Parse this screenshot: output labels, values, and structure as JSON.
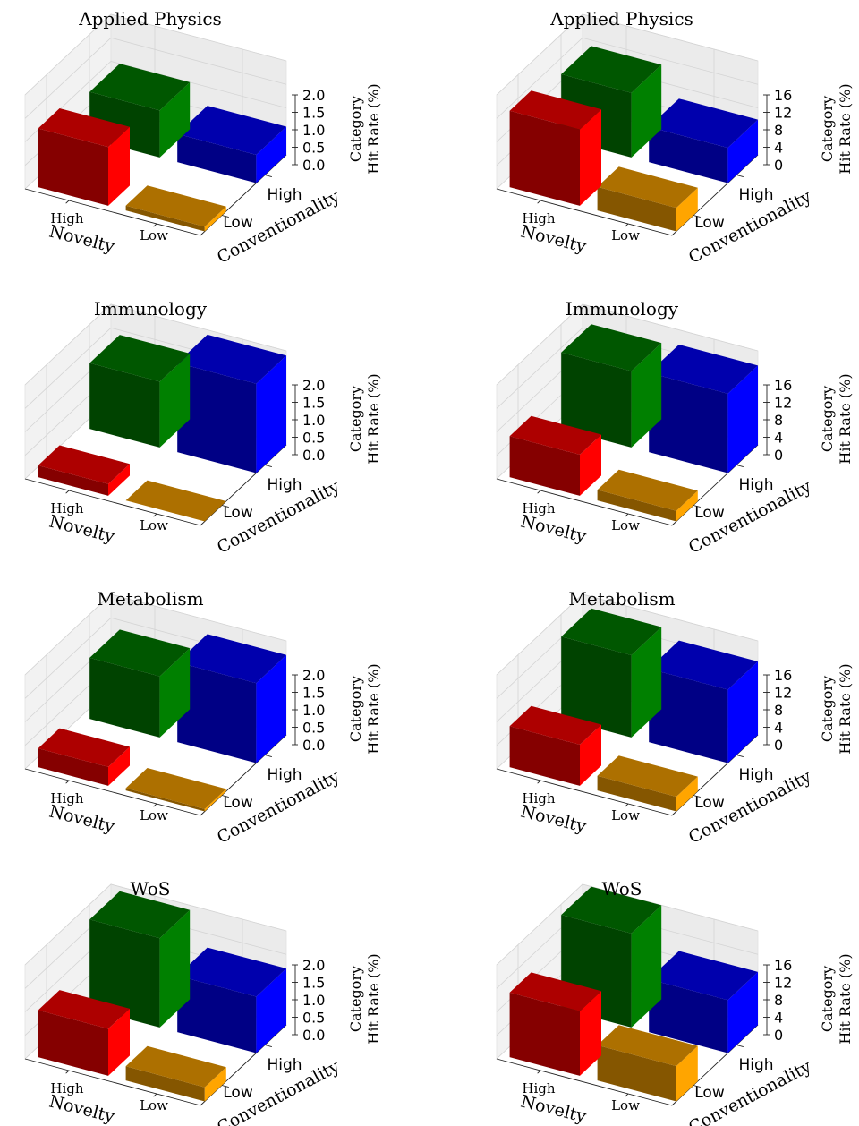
{
  "figure": {
    "x_axis_label": "Novelty",
    "y_axis_label": "Conventionality",
    "z_axis_label_line1": "Category",
    "z_axis_label_line2": "Hit Rate (%)",
    "level_labels": [
      "High",
      "Low"
    ]
  },
  "colors": {
    "high_novelty_high_conventionality": "#ff0000",
    "low_novelty_high_conventionality": "#008000",
    "high_novelty_low_conventionality": "#0000ff",
    "low_novelty_low_conventionality": "#ffa500"
  },
  "chart_data": [
    {
      "type": "bar3d",
      "title": "Applied Physics",
      "zlim": [
        0,
        2.0
      ],
      "z_ticks": [
        "0.0",
        "0.5",
        "1.0",
        "1.5",
        "2.0"
      ],
      "bars": {
        "red": 1.25,
        "green": 1.0,
        "blue": 0.6,
        "orange": 0.1
      }
    },
    {
      "type": "bar3d",
      "title": "Applied Physics",
      "zlim": [
        0,
        16
      ],
      "z_ticks": [
        "0",
        "4",
        "8",
        "12",
        "16"
      ],
      "bars": {
        "red": 13.0,
        "green": 11.0,
        "blue": 6.0,
        "orange": 4.0
      }
    },
    {
      "type": "bar3d",
      "title": "Immunology",
      "zlim": [
        0,
        2.0
      ],
      "z_ticks": [
        "0.0",
        "0.5",
        "1.0",
        "1.5",
        "2.0"
      ],
      "bars": {
        "red": 0.25,
        "green": 1.4,
        "blue": 1.9,
        "orange": 0.0
      }
    },
    {
      "type": "bar3d",
      "title": "Immunology",
      "zlim": [
        0,
        16
      ],
      "z_ticks": [
        "0",
        "4",
        "8",
        "12",
        "16"
      ],
      "bars": {
        "red": 7.0,
        "green": 13.0,
        "blue": 13.5,
        "orange": 1.8
      }
    },
    {
      "type": "bar3d",
      "title": "Metabolism",
      "zlim": [
        0,
        2.0
      ],
      "z_ticks": [
        "0.0",
        "0.5",
        "1.0",
        "1.5",
        "2.0"
      ],
      "bars": {
        "red": 0.4,
        "green": 1.3,
        "blue": 1.7,
        "orange": 0.05
      }
    },
    {
      "type": "bar3d",
      "title": "Metabolism",
      "zlim": [
        0,
        16
      ],
      "z_ticks": [
        "0",
        "4",
        "8",
        "12",
        "16"
      ],
      "bars": {
        "red": 7.0,
        "green": 14.0,
        "blue": 12.5,
        "orange": 2.5
      }
    },
    {
      "type": "bar3d",
      "title": "WoS",
      "zlim": [
        0,
        2.0
      ],
      "z_ticks": [
        "0.0",
        "0.5",
        "1.0",
        "1.5",
        "2.0"
      ],
      "bars": {
        "red": 1.0,
        "green": 1.9,
        "blue": 1.2,
        "orange": 0.3
      }
    },
    {
      "type": "bar3d",
      "title": "WoS",
      "zlim": [
        0,
        16
      ],
      "z_ticks": [
        "0",
        "4",
        "8",
        "12",
        "16"
      ],
      "bars": {
        "red": 11.0,
        "green": 16.0,
        "blue": 9.0,
        "orange": 6.0
      }
    }
  ]
}
